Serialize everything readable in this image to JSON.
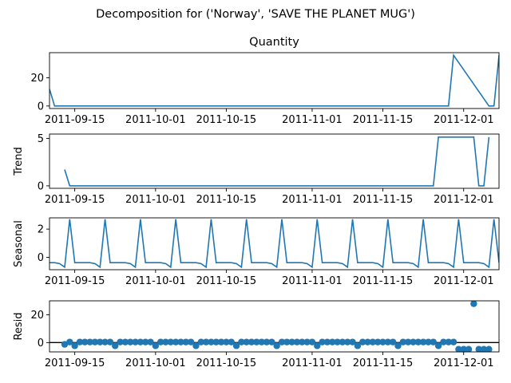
{
  "suptitle": "Decomposition for ('Norway', 'SAVE THE PLANET MUG')",
  "x_tick_labels": [
    "2011-09-15",
    "2011-10-01",
    "2011-10-15",
    "2011-11-01",
    "2011-11-15",
    "2011-12-01"
  ],
  "x_tick_dates": [
    "2011-09-15",
    "2011-10-01",
    "2011-10-15",
    "2011-11-01",
    "2011-11-15",
    "2011-12-01"
  ],
  "colors": {
    "line": "#1f77b4",
    "axis": "#000000",
    "zero_line": "#000000"
  },
  "chart_data": [
    {
      "type": "line",
      "panel": "observed",
      "title": "Quantity",
      "ylabel": "",
      "yticks": [
        0,
        20
      ],
      "ylim": [
        -1.8,
        37.8
      ],
      "xlim": [
        "2011-09-10",
        "2011-12-08"
      ],
      "series": [
        {
          "x": [
            "2011-09-10",
            "2011-09-11",
            "2011-11-28",
            "2011-11-29",
            "2011-12-06",
            "2011-12-07",
            "2011-12-08"
          ],
          "values": [
            12,
            0,
            0,
            36,
            0,
            0,
            36
          ]
        }
      ]
    },
    {
      "type": "line",
      "panel": "trend",
      "title": "",
      "ylabel": "Trend",
      "yticks": [
        0,
        5
      ],
      "ylim": [
        -0.26,
        5.46
      ],
      "xlim": [
        "2011-09-10",
        "2011-12-08"
      ],
      "series": [
        {
          "x": [
            "2011-09-13",
            "2011-09-14",
            "2011-11-25",
            "2011-11-26",
            "2011-12-03",
            "2011-12-04",
            "2011-12-05",
            "2011-12-06"
          ],
          "values": [
            1.714,
            0,
            0,
            5.143,
            5.143,
            0,
            0,
            5.143
          ]
        }
      ]
    },
    {
      "type": "line",
      "panel": "seasonal",
      "title": "",
      "ylabel": "Seasonal",
      "yticks": [
        0,
        2
      ],
      "ylim": [
        -0.88,
        2.8
      ],
      "xlim": [
        "2011-09-10",
        "2011-12-08"
      ],
      "weekly_pattern": [
        2.7,
        -0.38,
        -0.38,
        -0.38,
        -0.38,
        -0.45,
        -0.7
      ],
      "first_peak": "2011-09-14",
      "series": [
        {
          "x_start": "2011-09-10",
          "x_end": "2011-12-08",
          "pattern": "weekly"
        }
      ]
    },
    {
      "type": "scatter",
      "panel": "resid",
      "title": "",
      "ylabel": "Resid",
      "yticks": [
        0,
        20
      ],
      "ylim": [
        -6.7,
        30.1
      ],
      "xlim": [
        "2011-09-10",
        "2011-12-08"
      ],
      "hline": 0,
      "series": [
        {
          "x": [
            "2011-09-13",
            "2011-09-14",
            "2011-09-15",
            "2011-09-16",
            "2011-09-17",
            "2011-09-18",
            "2011-09-19",
            "2011-09-20",
            "2011-09-21",
            "2011-09-22",
            "2011-09-23",
            "2011-09-24",
            "2011-09-25",
            "2011-09-26",
            "2011-09-27",
            "2011-09-28",
            "2011-09-29",
            "2011-09-30",
            "2011-10-01",
            "2011-10-02",
            "2011-10-03",
            "2011-10-04",
            "2011-10-05",
            "2011-10-06",
            "2011-10-07",
            "2011-10-08",
            "2011-10-09",
            "2011-10-10",
            "2011-10-11",
            "2011-10-12",
            "2011-10-13",
            "2011-10-14",
            "2011-10-15",
            "2011-10-16",
            "2011-10-17",
            "2011-10-18",
            "2011-10-19",
            "2011-10-20",
            "2011-10-21",
            "2011-10-22",
            "2011-10-23",
            "2011-10-24",
            "2011-10-25",
            "2011-10-26",
            "2011-10-27",
            "2011-10-28",
            "2011-10-29",
            "2011-10-30",
            "2011-10-31",
            "2011-11-01",
            "2011-11-02",
            "2011-11-03",
            "2011-11-04",
            "2011-11-05",
            "2011-11-06",
            "2011-11-07",
            "2011-11-08",
            "2011-11-09",
            "2011-11-10",
            "2011-11-11",
            "2011-11-12",
            "2011-11-13",
            "2011-11-14",
            "2011-11-15",
            "2011-11-16",
            "2011-11-17",
            "2011-11-18",
            "2011-11-19",
            "2011-11-20",
            "2011-11-21",
            "2011-11-22",
            "2011-11-23",
            "2011-11-24",
            "2011-11-25",
            "2011-11-26",
            "2011-11-27",
            "2011-11-28",
            "2011-11-29",
            "2011-11-30",
            "2011-12-01",
            "2011-12-02",
            "2011-12-03",
            "2011-12-04",
            "2011-12-05",
            "2011-12-06"
          ],
          "values": [
            -1.3,
            0.4,
            -2.3,
            0.4,
            0.4,
            0.4,
            0.4,
            0.4,
            0.4,
            0.4,
            -2.3,
            0.4,
            0.4,
            0.4,
            0.4,
            0.4,
            0.4,
            0.4,
            -2.3,
            0.4,
            0.4,
            0.4,
            0.4,
            0.4,
            0.4,
            0.4,
            -2.3,
            0.4,
            0.4,
            0.4,
            0.4,
            0.4,
            0.4,
            0.4,
            -2.3,
            0.4,
            0.4,
            0.4,
            0.4,
            0.4,
            0.4,
            0.4,
            -2.3,
            0.4,
            0.4,
            0.4,
            0.4,
            0.4,
            0.4,
            0.4,
            -2.3,
            0.4,
            0.4,
            0.4,
            0.4,
            0.4,
            0.4,
            0.4,
            -2.3,
            0.4,
            0.4,
            0.4,
            0.4,
            0.4,
            0.4,
            0.4,
            -2.3,
            0.4,
            0.4,
            0.4,
            0.4,
            0.4,
            0.4,
            0.4,
            -2.3,
            0.4,
            0.4,
            0.4,
            -4.8,
            -4.8,
            -4.8,
            28.0,
            -4.8,
            -4.8,
            -4.8
          ]
        }
      ]
    }
  ]
}
